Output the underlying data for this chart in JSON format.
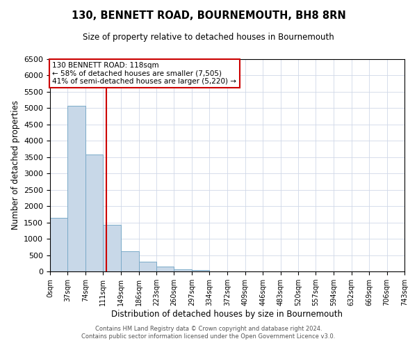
{
  "title": "130, BENNETT ROAD, BOURNEMOUTH, BH8 8RN",
  "subtitle": "Size of property relative to detached houses in Bournemouth",
  "xlabel": "Distribution of detached houses by size in Bournemouth",
  "ylabel": "Number of detached properties",
  "bar_edges": [
    0,
    37,
    74,
    111,
    149,
    186,
    223,
    260,
    297,
    334,
    372,
    409,
    446,
    483,
    520,
    557,
    594,
    632,
    669,
    706,
    743
  ],
  "bar_heights": [
    1650,
    5080,
    3580,
    1430,
    620,
    300,
    150,
    70,
    50,
    0,
    0,
    0,
    0,
    0,
    0,
    0,
    0,
    0,
    0,
    0
  ],
  "bar_color": "#c8d8e8",
  "bar_edgecolor": "#7aaac8",
  "property_line_x": 118,
  "property_line_color": "#cc0000",
  "annotation_title": "130 BENNETT ROAD: 118sqm",
  "annotation_line1": "← 58% of detached houses are smaller (7,505)",
  "annotation_line2": "41% of semi-detached houses are larger (5,220) →",
  "annotation_box_color": "#cc0000",
  "ylim": [
    0,
    6500
  ],
  "yticks": [
    0,
    500,
    1000,
    1500,
    2000,
    2500,
    3000,
    3500,
    4000,
    4500,
    5000,
    5500,
    6000,
    6500
  ],
  "tick_labels": [
    "0sqm",
    "37sqm",
    "74sqm",
    "111sqm",
    "149sqm",
    "186sqm",
    "223sqm",
    "260sqm",
    "297sqm",
    "334sqm",
    "372sqm",
    "409sqm",
    "446sqm",
    "483sqm",
    "520sqm",
    "557sqm",
    "594sqm",
    "632sqm",
    "669sqm",
    "706sqm",
    "743sqm"
  ],
  "footer_line1": "Contains HM Land Registry data © Crown copyright and database right 2024.",
  "footer_line2": "Contains public sector information licensed under the Open Government Licence v3.0.",
  "background_color": "#ffffff",
  "grid_color": "#d0d8e8"
}
